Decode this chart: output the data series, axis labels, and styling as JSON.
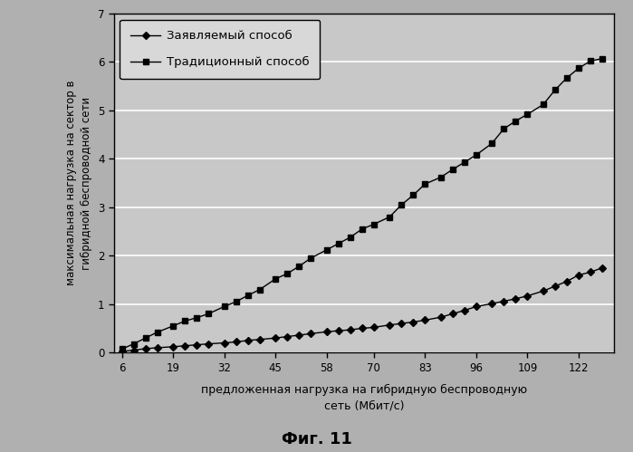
{
  "x_ticks": [
    6,
    19,
    32,
    45,
    58,
    70,
    83,
    96,
    109,
    122
  ],
  "x_values": [
    6,
    9,
    12,
    15,
    19,
    22,
    25,
    28,
    32,
    35,
    38,
    41,
    45,
    48,
    51,
    54,
    58,
    61,
    64,
    67,
    70,
    74,
    77,
    80,
    83,
    87,
    90,
    93,
    96,
    100,
    103,
    106,
    109,
    113,
    116,
    119,
    122,
    125,
    128
  ],
  "y_claimed": [
    0.02,
    0.05,
    0.08,
    0.1,
    0.12,
    0.14,
    0.16,
    0.18,
    0.2,
    0.22,
    0.25,
    0.27,
    0.3,
    0.33,
    0.36,
    0.39,
    0.43,
    0.45,
    0.47,
    0.5,
    0.52,
    0.57,
    0.6,
    0.63,
    0.67,
    0.73,
    0.8,
    0.87,
    0.95,
    1.01,
    1.06,
    1.11,
    1.17,
    1.27,
    1.37,
    1.47,
    1.6,
    1.66,
    1.75
  ],
  "y_traditional": [
    0.07,
    0.18,
    0.3,
    0.42,
    0.55,
    0.65,
    0.72,
    0.8,
    0.95,
    1.05,
    1.18,
    1.3,
    1.52,
    1.63,
    1.78,
    1.95,
    2.12,
    2.25,
    2.38,
    2.55,
    2.65,
    2.8,
    3.05,
    3.25,
    3.48,
    3.62,
    3.78,
    3.93,
    4.08,
    4.32,
    4.62,
    4.78,
    4.92,
    5.12,
    5.42,
    5.67,
    5.87,
    6.02,
    6.07
  ],
  "ylabel": "максимальная нагрузка на сектор в\nгибридной беспроводной сети",
  "xlabel_line1": "предложенная нагрузка на гибридную беспроводную",
  "xlabel_line2": "сеть (Мбит/с)",
  "legend_claimed": "Заявляемый способ",
  "legend_traditional": "Традиционный способ",
  "fig_label": "Фиг. 11",
  "ylim": [
    0,
    7
  ],
  "xlim": [
    4,
    131
  ],
  "outer_bg": "#b0b0b0",
  "plot_bg_color": "#c8c8c8",
  "grid_color": "#ffffff",
  "legend_bg": "#d8d8d8"
}
